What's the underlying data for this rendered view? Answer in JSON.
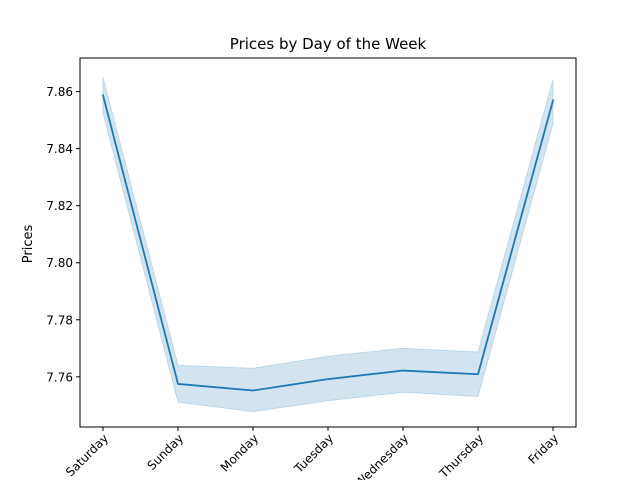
{
  "chart_data": {
    "type": "line",
    "title": "Prices by Day of the Week",
    "xlabel": "",
    "ylabel": "Prices",
    "categories": [
      "Saturday",
      "Sunday",
      "Monday",
      "Tuesday",
      "Wednesday",
      "Thursday",
      "Friday"
    ],
    "series": [
      {
        "values": [
          7.8587,
          7.7575,
          7.7552,
          7.7592,
          7.7622,
          7.7609,
          7.8569
        ],
        "ci_lower": [
          7.8525,
          7.7511,
          7.7478,
          7.7516,
          7.7546,
          7.7531,
          7.8488
        ],
        "ci_upper": [
          7.865,
          7.764,
          7.763,
          7.7672,
          7.77,
          7.7687,
          7.8643
        ],
        "color": "#1f77b4"
      }
    ],
    "ylim": [
      7.7424,
      7.8718
    ],
    "yticks": [
      7.76,
      7.78,
      7.8,
      7.82,
      7.84,
      7.86
    ],
    "ytick_labels": [
      "7.76",
      "7.78",
      "7.80",
      "7.82",
      "7.84",
      "7.86"
    ],
    "grid": false,
    "band_color": "#1f77b4"
  }
}
